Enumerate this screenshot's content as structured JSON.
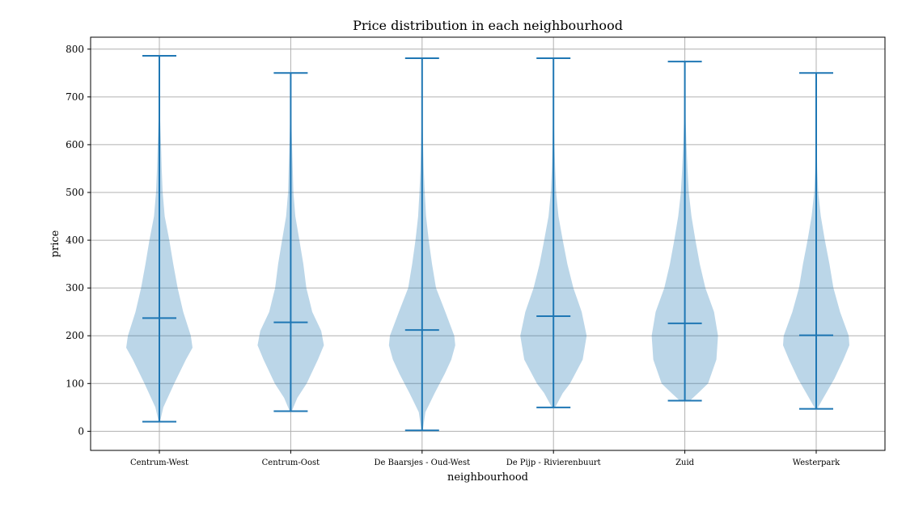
{
  "chart_data": {
    "type": "violin",
    "title": "Price distribution in each neighbourhood",
    "xlabel": "neighbourhood",
    "ylabel": "price",
    "ylim": [
      -40,
      825
    ],
    "yticks": [
      0,
      100,
      200,
      300,
      400,
      500,
      600,
      700,
      800
    ],
    "grid": true,
    "colors": {
      "line": "#1f77b4",
      "fill": "#1f77b4",
      "fill_opacity": 0.3,
      "grid": "#b0b0b0"
    },
    "categories": [
      "Centrum-West",
      "Centrum-Oost",
      "De Baarsjes - Oud-West",
      "De Pijp - Rivierenbuurt",
      "Zuid",
      "Westerpark"
    ],
    "series": [
      {
        "category": "Centrum-West",
        "min": 20,
        "max": 786,
        "mean": 237,
        "density": [
          [
            20,
            0.02
          ],
          [
            50,
            0.12
          ],
          [
            100,
            0.45
          ],
          [
            150,
            0.8
          ],
          [
            175,
            1.0
          ],
          [
            200,
            0.95
          ],
          [
            250,
            0.72
          ],
          [
            300,
            0.55
          ],
          [
            350,
            0.42
          ],
          [
            400,
            0.3
          ],
          [
            450,
            0.16
          ],
          [
            500,
            0.1
          ],
          [
            550,
            0.07
          ],
          [
            600,
            0.05
          ],
          [
            650,
            0.025
          ],
          [
            700,
            0.015
          ],
          [
            786,
            0.005
          ]
        ]
      },
      {
        "category": "Centrum-Oost",
        "min": 42,
        "max": 750,
        "mean": 228,
        "density": [
          [
            42,
            0.03
          ],
          [
            70,
            0.2
          ],
          [
            100,
            0.48
          ],
          [
            150,
            0.82
          ],
          [
            180,
            1.0
          ],
          [
            210,
            0.92
          ],
          [
            250,
            0.65
          ],
          [
            300,
            0.47
          ],
          [
            350,
            0.38
          ],
          [
            400,
            0.26
          ],
          [
            450,
            0.14
          ],
          [
            500,
            0.08
          ],
          [
            550,
            0.06
          ],
          [
            600,
            0.04
          ],
          [
            650,
            0.02
          ],
          [
            750,
            0.005
          ]
        ]
      },
      {
        "category": "De Baarsjes - Oud-West",
        "min": 2,
        "max": 781,
        "mean": 212,
        "density": [
          [
            2,
            0.02
          ],
          [
            40,
            0.1
          ],
          [
            80,
            0.38
          ],
          [
            120,
            0.68
          ],
          [
            150,
            0.88
          ],
          [
            180,
            1.0
          ],
          [
            200,
            0.97
          ],
          [
            250,
            0.7
          ],
          [
            300,
            0.42
          ],
          [
            350,
            0.3
          ],
          [
            400,
            0.2
          ],
          [
            450,
            0.12
          ],
          [
            500,
            0.08
          ],
          [
            550,
            0.05
          ],
          [
            600,
            0.03
          ],
          [
            650,
            0.015
          ],
          [
            781,
            0.005
          ]
        ]
      },
      {
        "category": "De Pijp - Rivierenbuurt",
        "min": 50,
        "max": 781,
        "mean": 241,
        "density": [
          [
            50,
            0.05
          ],
          [
            80,
            0.28
          ],
          [
            100,
            0.5
          ],
          [
            150,
            0.88
          ],
          [
            200,
            1.0
          ],
          [
            250,
            0.85
          ],
          [
            300,
            0.6
          ],
          [
            350,
            0.42
          ],
          [
            400,
            0.28
          ],
          [
            450,
            0.15
          ],
          [
            500,
            0.08
          ],
          [
            550,
            0.05
          ],
          [
            600,
            0.03
          ],
          [
            650,
            0.015
          ],
          [
            781,
            0.005
          ]
        ]
      },
      {
        "category": "Zuid",
        "min": 64,
        "max": 774,
        "mean": 226,
        "density": [
          [
            64,
            0.15
          ],
          [
            80,
            0.4
          ],
          [
            100,
            0.7
          ],
          [
            150,
            0.95
          ],
          [
            200,
            1.0
          ],
          [
            250,
            0.88
          ],
          [
            300,
            0.62
          ],
          [
            350,
            0.45
          ],
          [
            400,
            0.32
          ],
          [
            450,
            0.2
          ],
          [
            500,
            0.12
          ],
          [
            550,
            0.08
          ],
          [
            600,
            0.05
          ],
          [
            650,
            0.025
          ],
          [
            774,
            0.005
          ]
        ]
      },
      {
        "category": "Westerpark",
        "min": 47,
        "max": 750,
        "mean": 201,
        "density": [
          [
            47,
            0.03
          ],
          [
            80,
            0.3
          ],
          [
            110,
            0.55
          ],
          [
            150,
            0.82
          ],
          [
            180,
            1.0
          ],
          [
            200,
            0.98
          ],
          [
            250,
            0.72
          ],
          [
            300,
            0.52
          ],
          [
            350,
            0.4
          ],
          [
            400,
            0.26
          ],
          [
            450,
            0.14
          ],
          [
            500,
            0.06
          ],
          [
            550,
            0.03
          ],
          [
            600,
            0.015
          ],
          [
            750,
            0.005
          ]
        ]
      }
    ]
  }
}
